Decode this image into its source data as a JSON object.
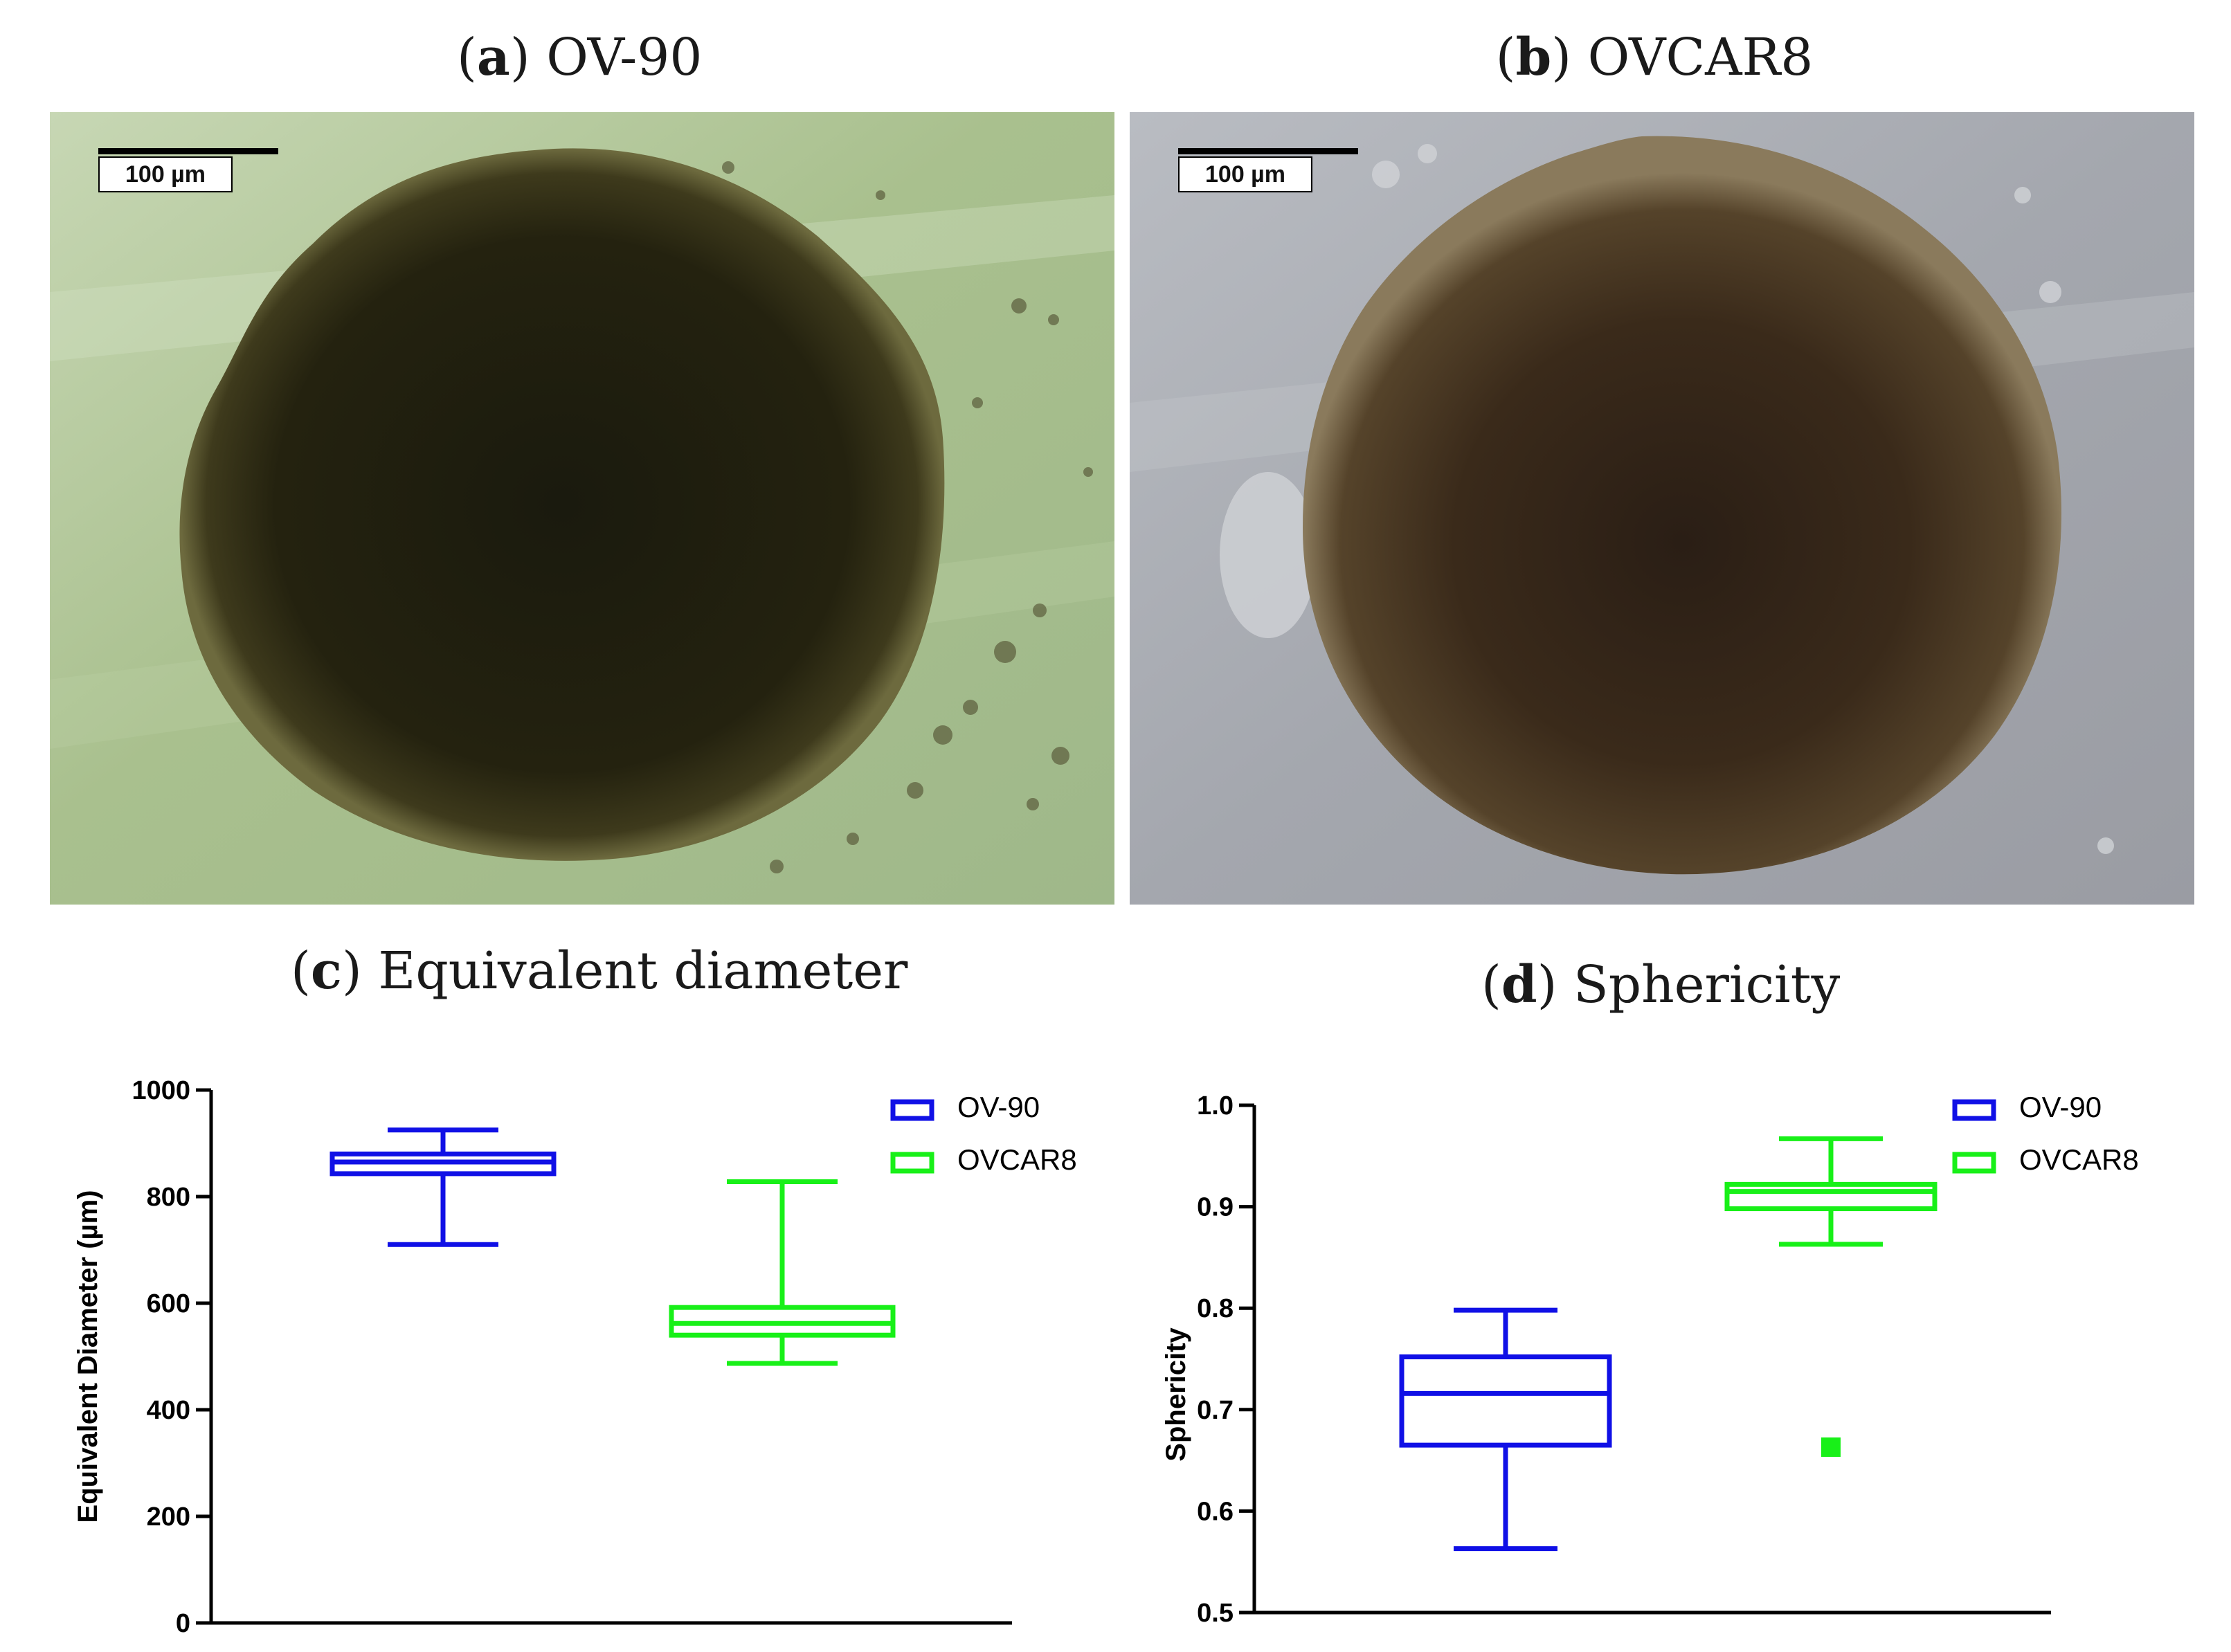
{
  "panels": {
    "a": {
      "letter": "a",
      "title": "OV-90",
      "scalebar": "100 µm"
    },
    "b": {
      "letter": "b",
      "title": "OVCAR8",
      "scalebar": "100 µm"
    },
    "c": {
      "letter": "c",
      "title": "Equivalent diameter"
    },
    "d": {
      "letter": "d",
      "title": "Sphericity"
    }
  },
  "colors": {
    "ov90": "#1010e6",
    "ovcar8": "#18f018",
    "axis": "#000000"
  },
  "chart_data": [
    {
      "type": "box",
      "title": "",
      "xlabel": "",
      "ylabel": "Equivalent Diameter (µm)",
      "ylim": [
        0,
        1000
      ],
      "yticks": [
        0,
        200,
        400,
        600,
        800,
        1000
      ],
      "legend_position": "top-right",
      "series": [
        {
          "name": "OV-90",
          "color": "#1010e6",
          "min": 710,
          "q1": 843,
          "median": 865,
          "q3": 880,
          "max": 925,
          "outliers": []
        },
        {
          "name": "OVCAR8",
          "color": "#18f018",
          "min": 487,
          "q1": 540,
          "median": 562,
          "q3": 592,
          "max": 828,
          "outliers": []
        }
      ]
    },
    {
      "type": "box",
      "title": "",
      "xlabel": "",
      "ylabel": "Sphericity",
      "ylim": [
        0.5,
        1.0
      ],
      "yticks": [
        "0.5",
        "0.6",
        "0.7",
        "0.8",
        "0.9",
        "1.0"
      ],
      "legend_position": "top-right",
      "series": [
        {
          "name": "OV-90",
          "color": "#1010e6",
          "min": 0.563,
          "q1": 0.665,
          "median": 0.716,
          "q3": 0.752,
          "max": 0.798,
          "outliers": []
        },
        {
          "name": "OVCAR8",
          "color": "#18f018",
          "min": 0.863,
          "q1": 0.898,
          "median": 0.915,
          "q3": 0.922,
          "max": 0.967,
          "outliers": [
            0.663
          ]
        }
      ]
    }
  ]
}
